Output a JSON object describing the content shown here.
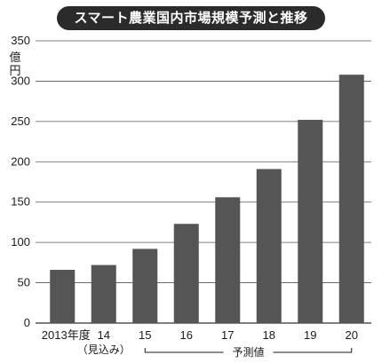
{
  "chart_data": {
    "type": "bar",
    "title": "スマート農業国内市場規模予測と推移",
    "ylabel": "億円",
    "categories": [
      "2013年度",
      "14",
      "15",
      "16",
      "17",
      "18",
      "19",
      "20"
    ],
    "category_notes": [
      "",
      "（見込み）",
      "",
      "",
      "",
      "",
      "",
      ""
    ],
    "values": [
      66,
      72,
      92,
      123,
      156,
      191,
      252,
      308
    ],
    "ylim": [
      0,
      350
    ],
    "yticks": [
      0,
      50,
      100,
      150,
      200,
      250,
      300,
      350
    ],
    "grid": true,
    "bar_color": "#555555",
    "forecast_label": "予測値",
    "forecast_range": [
      "15",
      "20"
    ]
  }
}
